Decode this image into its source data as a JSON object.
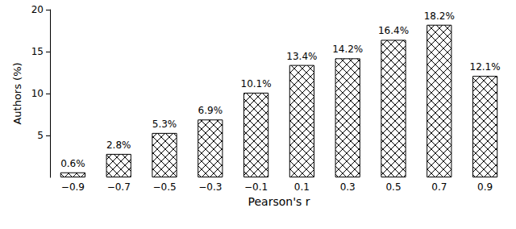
{
  "chart_data": {
    "type": "bar",
    "x_label": "Pearson's r",
    "y_label": "Authors (%)",
    "categories": [
      "−0.9",
      "−0.7",
      "−0.5",
      "−0.3",
      "−0.1",
      "0.1",
      "0.3",
      "0.5",
      "0.7",
      "0.9"
    ],
    "values": [
      0.6,
      2.8,
      5.3,
      6.9,
      10.1,
      13.4,
      14.2,
      16.4,
      18.2,
      12.1
    ],
    "value_labels": [
      "0.6%",
      "2.8%",
      "5.3%",
      "6.9%",
      "10.1%",
      "13.4%",
      "14.2%",
      "16.4%",
      "18.2%",
      "12.1%"
    ],
    "data_labels": true,
    "color": "#000000",
    "ylim": [
      0,
      20
    ],
    "yticks": [
      5,
      10,
      15,
      20
    ],
    "grid": false
  }
}
